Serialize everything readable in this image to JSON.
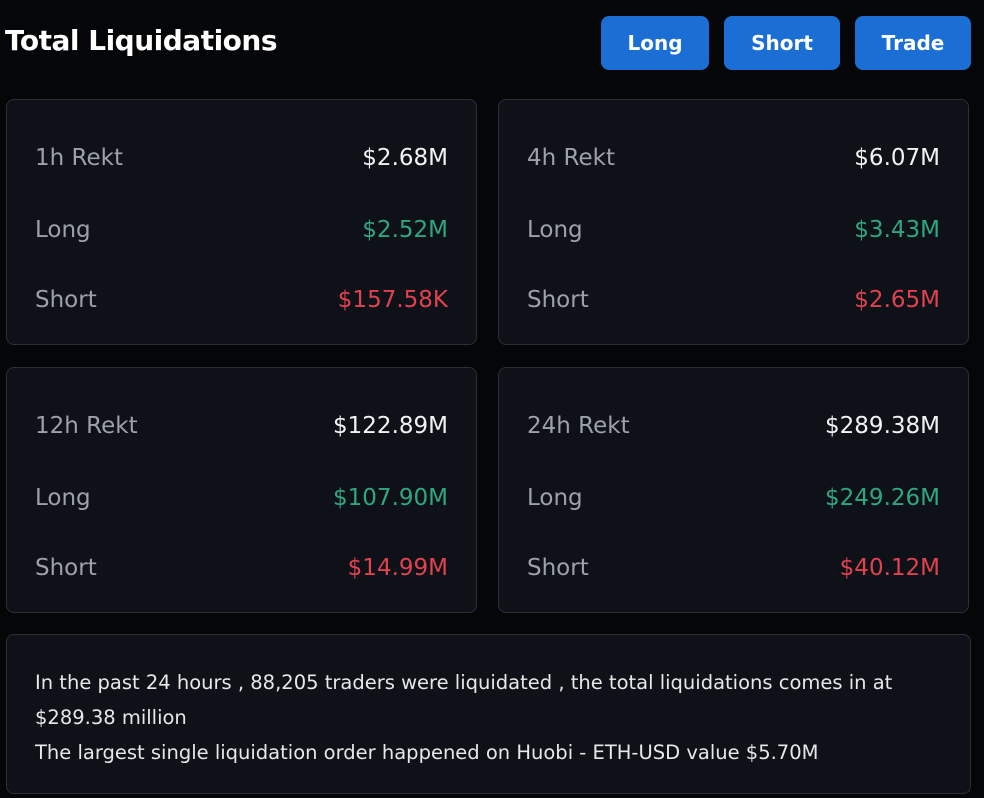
{
  "header": {
    "title": "Total Liquidations",
    "buttons": [
      "Long",
      "Short",
      "Trade"
    ]
  },
  "cards": [
    {
      "rows": [
        {
          "label": "1h Rekt",
          "value": "$2.68M"
        },
        {
          "label": "Long",
          "value": "$2.52M"
        },
        {
          "label": "Short",
          "value": "$157.58K"
        }
      ]
    },
    {
      "rows": [
        {
          "label": "4h Rekt",
          "value": "$6.07M"
        },
        {
          "label": "Long",
          "value": "$3.43M"
        },
        {
          "label": "Short",
          "value": "$2.65M"
        }
      ]
    },
    {
      "rows": [
        {
          "label": "12h Rekt",
          "value": "$122.89M"
        },
        {
          "label": "Long",
          "value": "$107.90M"
        },
        {
          "label": "Short",
          "value": "$14.99M"
        }
      ]
    },
    {
      "rows": [
        {
          "label": "24h Rekt",
          "value": "$289.38M"
        },
        {
          "label": "Long",
          "value": "$249.26M"
        },
        {
          "label": "Short",
          "value": "$40.12M"
        }
      ]
    }
  ],
  "summary": {
    "lines": [
      "In the past 24 hours , 88,205 traders were liquidated , the total liquidations comes in at $289.38 million",
      "The largest single liquidation order happened on Huobi - ETH-USD value $5.70M"
    ]
  }
}
